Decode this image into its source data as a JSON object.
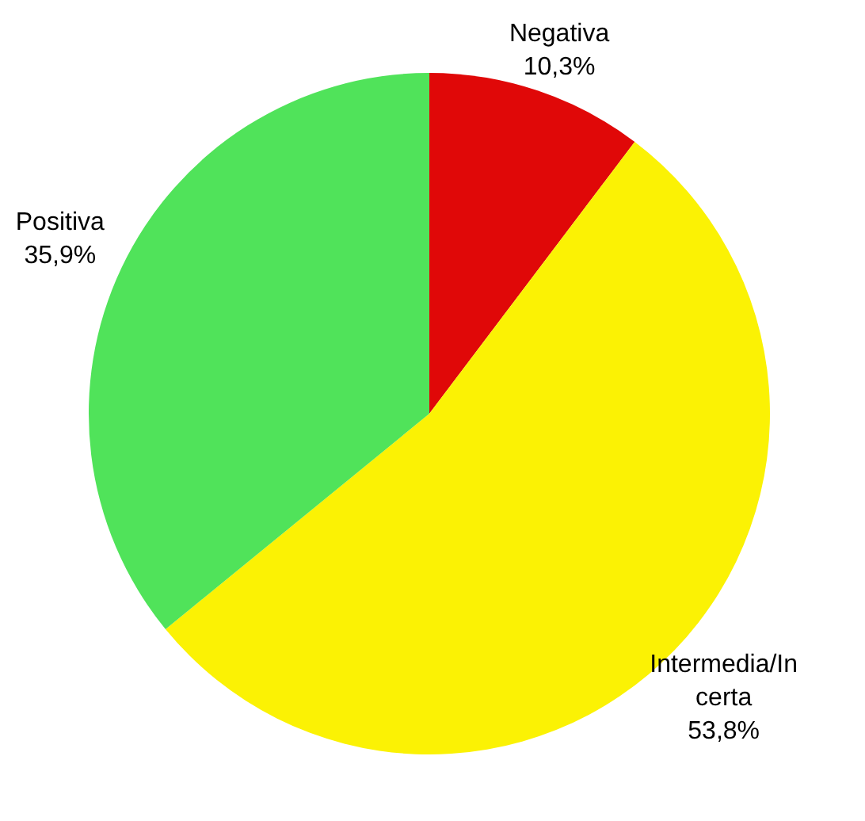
{
  "chart_data": {
    "type": "pie",
    "categories": [
      "Negativa",
      "Intermedia/Incerta",
      "Positiva"
    ],
    "values": [
      10.3,
      53.8,
      35.9
    ],
    "colors": [
      "#e00808",
      "#fbf204",
      "#50e35a"
    ],
    "value_labels": [
      "10,3%",
      "53,8%",
      "35,9%"
    ]
  }
}
